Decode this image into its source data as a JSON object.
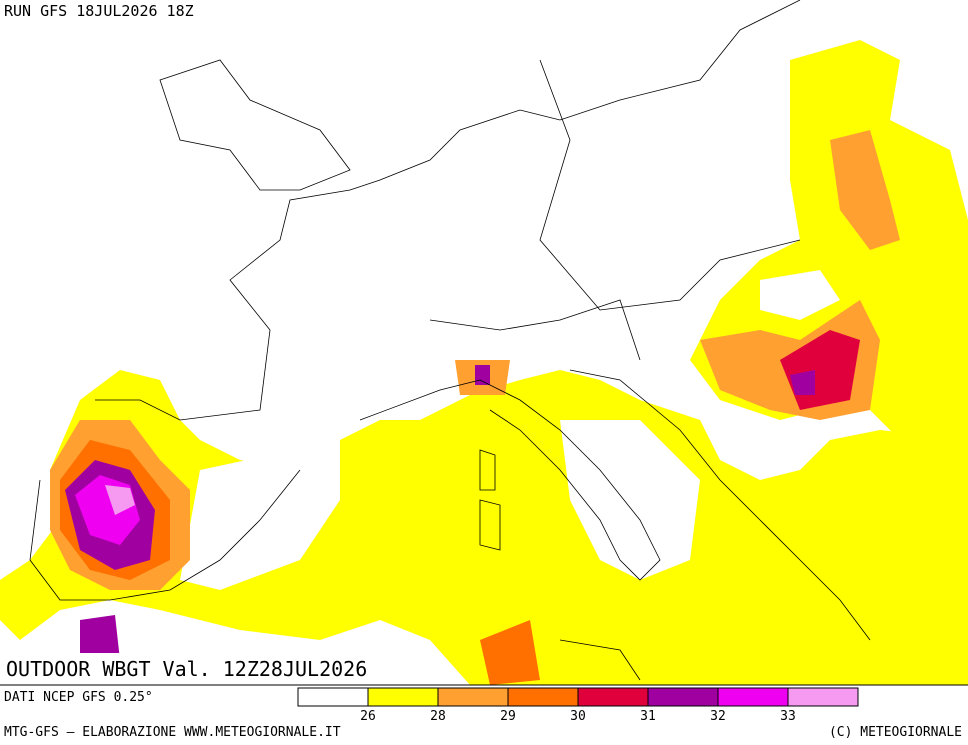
{
  "header": {
    "run": "RUN GFS 18JUL2026 18Z"
  },
  "title": "OUTDOOR WBGT Val. 12Z28JUL2026",
  "source": "DATI NCEP GFS 0.25°",
  "legend": {
    "colors": [
      "#ffffff",
      "#ffff00",
      "#ffa030",
      "#ff7000",
      "#e0003c",
      "#a000a0",
      "#f000f0",
      "#f59af0"
    ],
    "labels": [
      26,
      28,
      29,
      30,
      31,
      32,
      33
    ]
  },
  "footer": {
    "credit": "MTG-GFS — ELABORAZIONE WWW.METEOGIORNALE.IT",
    "copyright": "(C) METEOGIORNALE"
  }
}
